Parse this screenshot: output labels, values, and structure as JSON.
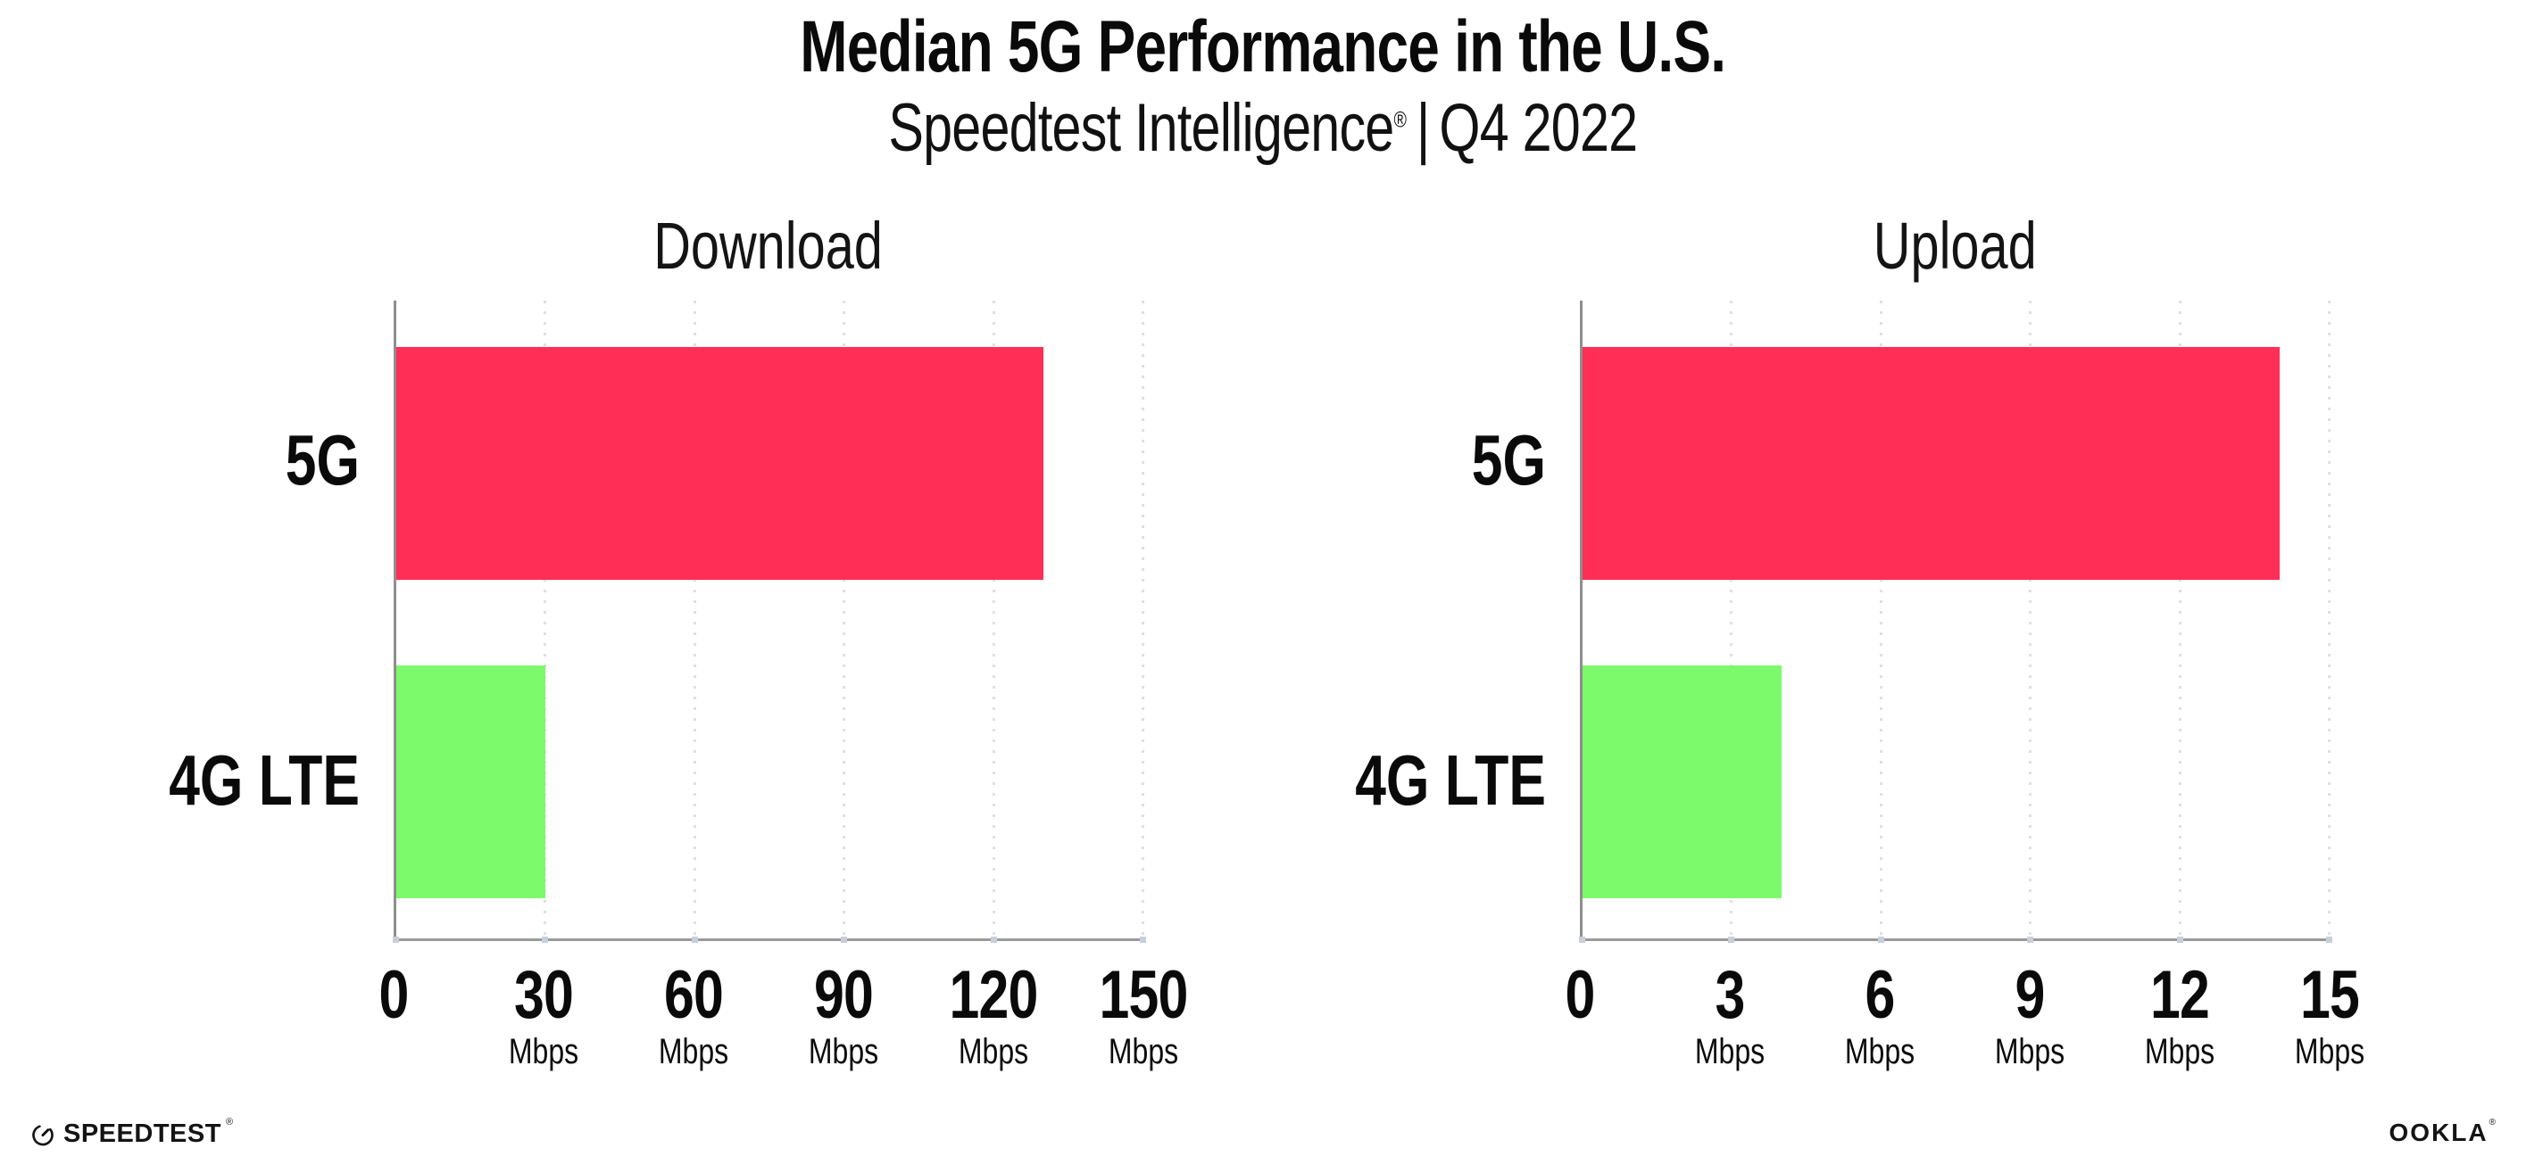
{
  "header": {
    "title": "Median 5G Performance in the U.S.",
    "subtitle_brand": "Speedtest Intelligence",
    "subtitle_reg": "®",
    "subtitle_pipe": "|",
    "subtitle_period": "Q4 2022"
  },
  "chart_data": [
    {
      "type": "bar",
      "orientation": "horizontal",
      "title": "Download",
      "categories": [
        "5G",
        "4G LTE"
      ],
      "values": [
        130,
        30
      ],
      "unit": "Mbps",
      "xlim": [
        0,
        150
      ],
      "xticks": [
        0,
        30,
        60,
        90,
        120,
        150
      ],
      "bar_colors": [
        "#ff2e56",
        "#7dfa6b"
      ],
      "grid": "vertical-dotted",
      "legend": "none"
    },
    {
      "type": "bar",
      "orientation": "horizontal",
      "title": "Upload",
      "categories": [
        "5G",
        "4G LTE"
      ],
      "values": [
        14,
        4
      ],
      "unit": "Mbps",
      "xlim": [
        0,
        15
      ],
      "xticks": [
        0,
        3,
        6,
        9,
        12,
        15
      ],
      "bar_colors": [
        "#ff2e56",
        "#7dfa6b"
      ],
      "grid": "vertical-dotted",
      "legend": "none"
    }
  ],
  "footer": {
    "speedtest_label": "SPEEDTEST",
    "speedtest_reg": "®",
    "ookla_label": "OOKLA",
    "ookla_reg": "®"
  },
  "colors": {
    "bar_5g": "#ff2e56",
    "bar_4g_lte": "#7dfa6b",
    "axis": "#9a9a9a",
    "gridline": "#dfdfe5",
    "tick_dot": "#c9cedb",
    "text": "#0a0a0a",
    "background": "#ffffff"
  }
}
